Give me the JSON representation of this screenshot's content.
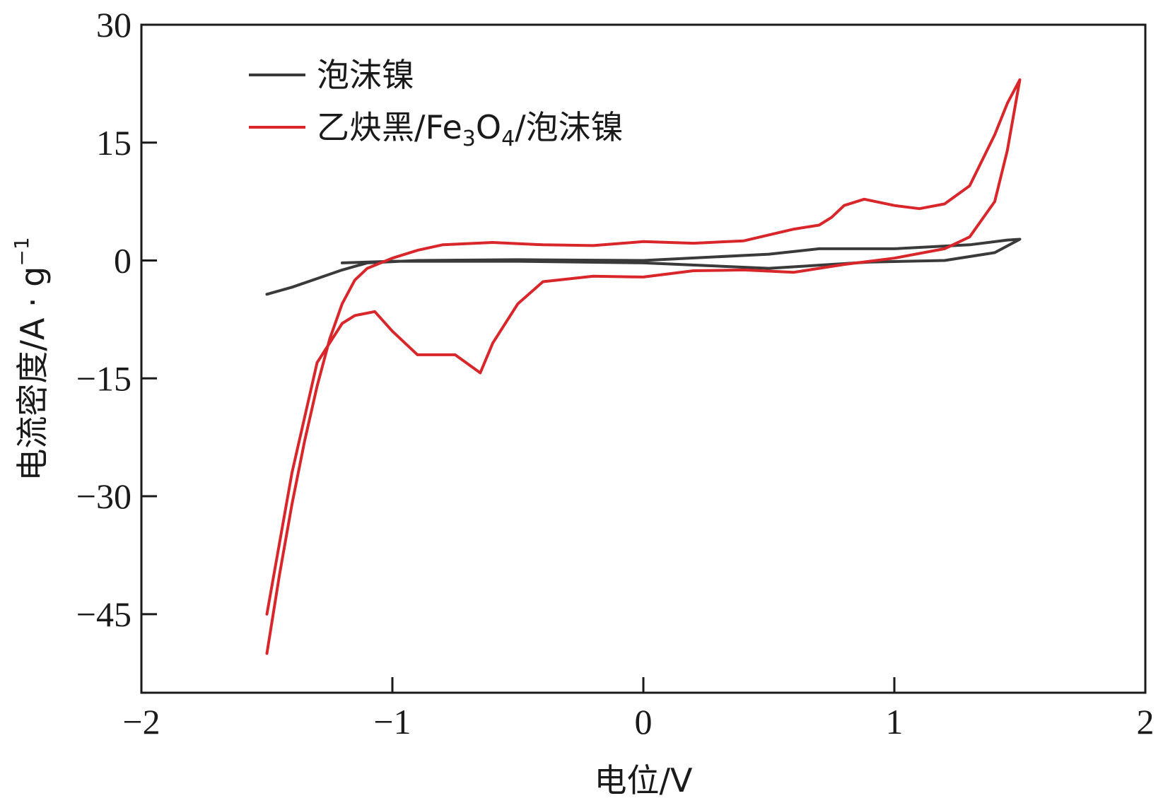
{
  "chart_data": {
    "type": "line",
    "xlabel": "电位/V",
    "ylabel": "电流密度/A · g",
    "ylabel_superscript": "−1",
    "xlim": [
      -2,
      2
    ],
    "ylim": [
      -55,
      30
    ],
    "xticks": [
      -2,
      -1,
      0,
      1,
      2
    ],
    "xtick_labels": [
      "−2",
      "−1",
      "0",
      "1",
      "2"
    ],
    "yticks": [
      30,
      15,
      0,
      -15,
      -30,
      -45
    ],
    "ytick_labels": [
      "30",
      "15",
      "0",
      "−15",
      "−30",
      "−45"
    ],
    "grid": false,
    "legend_position": "top-left",
    "series": [
      {
        "name": "泡沫镍",
        "color": "#3a3a3a",
        "x": [
          -1.5,
          -1.4,
          -1.3,
          -1.2,
          -1.1,
          -0.9,
          -0.5,
          0.0,
          0.5,
          0.7,
          1.0,
          1.3,
          1.45,
          1.5,
          1.4,
          1.2,
          0.9,
          0.5,
          0.0,
          -0.5,
          -1.0,
          -1.2
        ],
        "y": [
          -4.3,
          -3.4,
          -2.3,
          -1.2,
          -0.3,
          0.0,
          0.1,
          0.0,
          0.8,
          1.5,
          1.5,
          2.0,
          2.6,
          2.7,
          1.0,
          0.0,
          -0.2,
          -1.0,
          -0.3,
          -0.1,
          -0.1,
          -0.3
        ]
      },
      {
        "name": "乙炔黑/Fe3O4/泡沫镍",
        "name_main": "乙炔黑/Fe",
        "name_sub1": "3",
        "name_mid": "O",
        "name_sub2": "4",
        "name_tail": "/泡沫镍",
        "color": "#d8262b",
        "x": [
          -1.5,
          -1.45,
          -1.4,
          -1.35,
          -1.3,
          -1.25,
          -1.2,
          -1.15,
          -1.1,
          -1.0,
          -0.9,
          -0.8,
          -0.6,
          -0.4,
          -0.2,
          0.0,
          0.2,
          0.4,
          0.6,
          0.7,
          0.75,
          0.8,
          0.88,
          1.0,
          1.1,
          1.2,
          1.3,
          1.4,
          1.45,
          1.5,
          1.45,
          1.4,
          1.3,
          1.2,
          1.0,
          0.8,
          0.6,
          0.4,
          0.2,
          0.0,
          -0.2,
          -0.4,
          -0.5,
          -0.6,
          -0.65,
          -0.75,
          -0.9,
          -1.0,
          -1.07,
          -1.15,
          -1.2,
          -1.3,
          -1.4,
          -1.5
        ],
        "y": [
          -50,
          -40,
          -31,
          -23,
          -16,
          -10,
          -5.5,
          -2.5,
          -1.0,
          0.3,
          1.3,
          2.0,
          2.3,
          2.0,
          1.9,
          2.4,
          2.2,
          2.5,
          4.0,
          4.5,
          5.5,
          7.0,
          7.8,
          7.0,
          6.6,
          7.2,
          9.5,
          16.0,
          20.0,
          23.0,
          14.0,
          7.5,
          3.0,
          1.5,
          0.3,
          -0.5,
          -1.5,
          -1.2,
          -1.3,
          -2.1,
          -2.0,
          -2.7,
          -5.5,
          -10.5,
          -14.3,
          -12.0,
          -12.0,
          -9.0,
          -6.5,
          -7.0,
          -8.0,
          -13.0,
          -27.0,
          -45.0
        ]
      }
    ]
  }
}
